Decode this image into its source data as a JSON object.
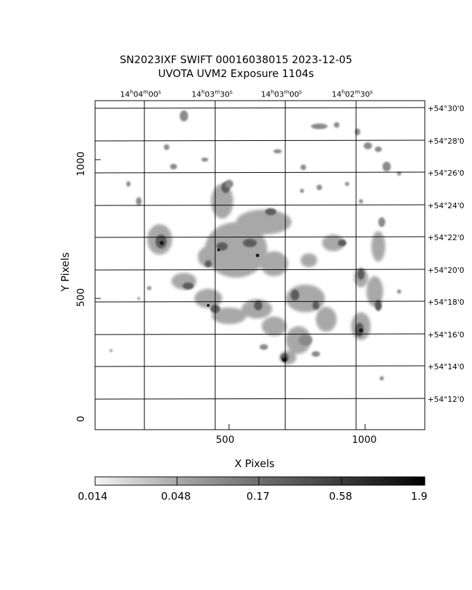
{
  "header": {
    "title_line1": "SN2023IXF SWIFT 00016038015 2023-12-05",
    "title_line2": "UVOTA UVM2 Exposure       1104s"
  },
  "axes": {
    "xlabel": "X Pixels",
    "ylabel": "Y Pixels",
    "x_ticks": [
      "500",
      "1000"
    ],
    "y_ticks": [
      "0",
      "500",
      "1000"
    ]
  },
  "ra_labels": [
    {
      "h": "14",
      "m": "04",
      "s": "00"
    },
    {
      "h": "14",
      "m": "03",
      "s": "30"
    },
    {
      "h": "14",
      "m": "03",
      "s": "00"
    },
    {
      "h": "14",
      "m": "02",
      "s": "30"
    }
  ],
  "dec_labels": [
    "+54°30'0",
    "+54°28'0",
    "+54°26'0",
    "+54°24'0",
    "+54°22'0",
    "+54°20'0",
    "+54°18'0",
    "+54°16'0",
    "+54°14'0",
    "+54°12'0"
  ],
  "colorbar": {
    "labels": [
      "0.014",
      "0.048",
      "0.17",
      "0.58",
      "1.9"
    ]
  },
  "units": {
    "ra_h": "h",
    "ra_m": "m",
    "ra_s": "s"
  }
}
